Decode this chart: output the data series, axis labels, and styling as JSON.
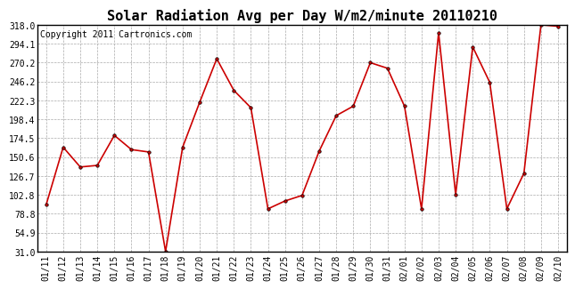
{
  "title": "Solar Radiation Avg per Day W/m2/minute 20110210",
  "copyright": "Copyright 2011 Cartronics.com",
  "dates": [
    "01/11",
    "01/12",
    "01/13",
    "01/14",
    "01/15",
    "01/16",
    "01/17",
    "01/18",
    "01/19",
    "01/20",
    "01/21",
    "01/22",
    "01/23",
    "01/24",
    "01/25",
    "01/26",
    "01/27",
    "01/28",
    "01/29",
    "01/30",
    "01/31",
    "02/01",
    "02/02",
    "02/03",
    "02/04",
    "02/05",
    "02/06",
    "02/07",
    "02/08",
    "02/09",
    "02/10"
  ],
  "values": [
    90,
    163,
    138,
    140,
    178,
    160,
    157,
    31,
    163,
    220,
    275,
    235,
    213,
    85,
    95,
    102,
    158,
    203,
    215,
    270,
    263,
    215,
    85,
    308,
    103,
    290,
    245,
    85,
    130,
    318,
    316
  ],
  "yticks": [
    31.0,
    54.9,
    78.8,
    102.8,
    126.7,
    150.6,
    174.5,
    198.4,
    222.3,
    246.2,
    270.2,
    294.1,
    318.0
  ],
  "ymin": 31.0,
  "ymax": 318.0,
  "line_color": "#cc0000",
  "marker": "o",
  "marker_size": 2.5,
  "background_color": "#ffffff",
  "grid_color": "#aaaaaa",
  "title_fontsize": 11,
  "label_fontsize": 7,
  "copyright_fontsize": 7
}
